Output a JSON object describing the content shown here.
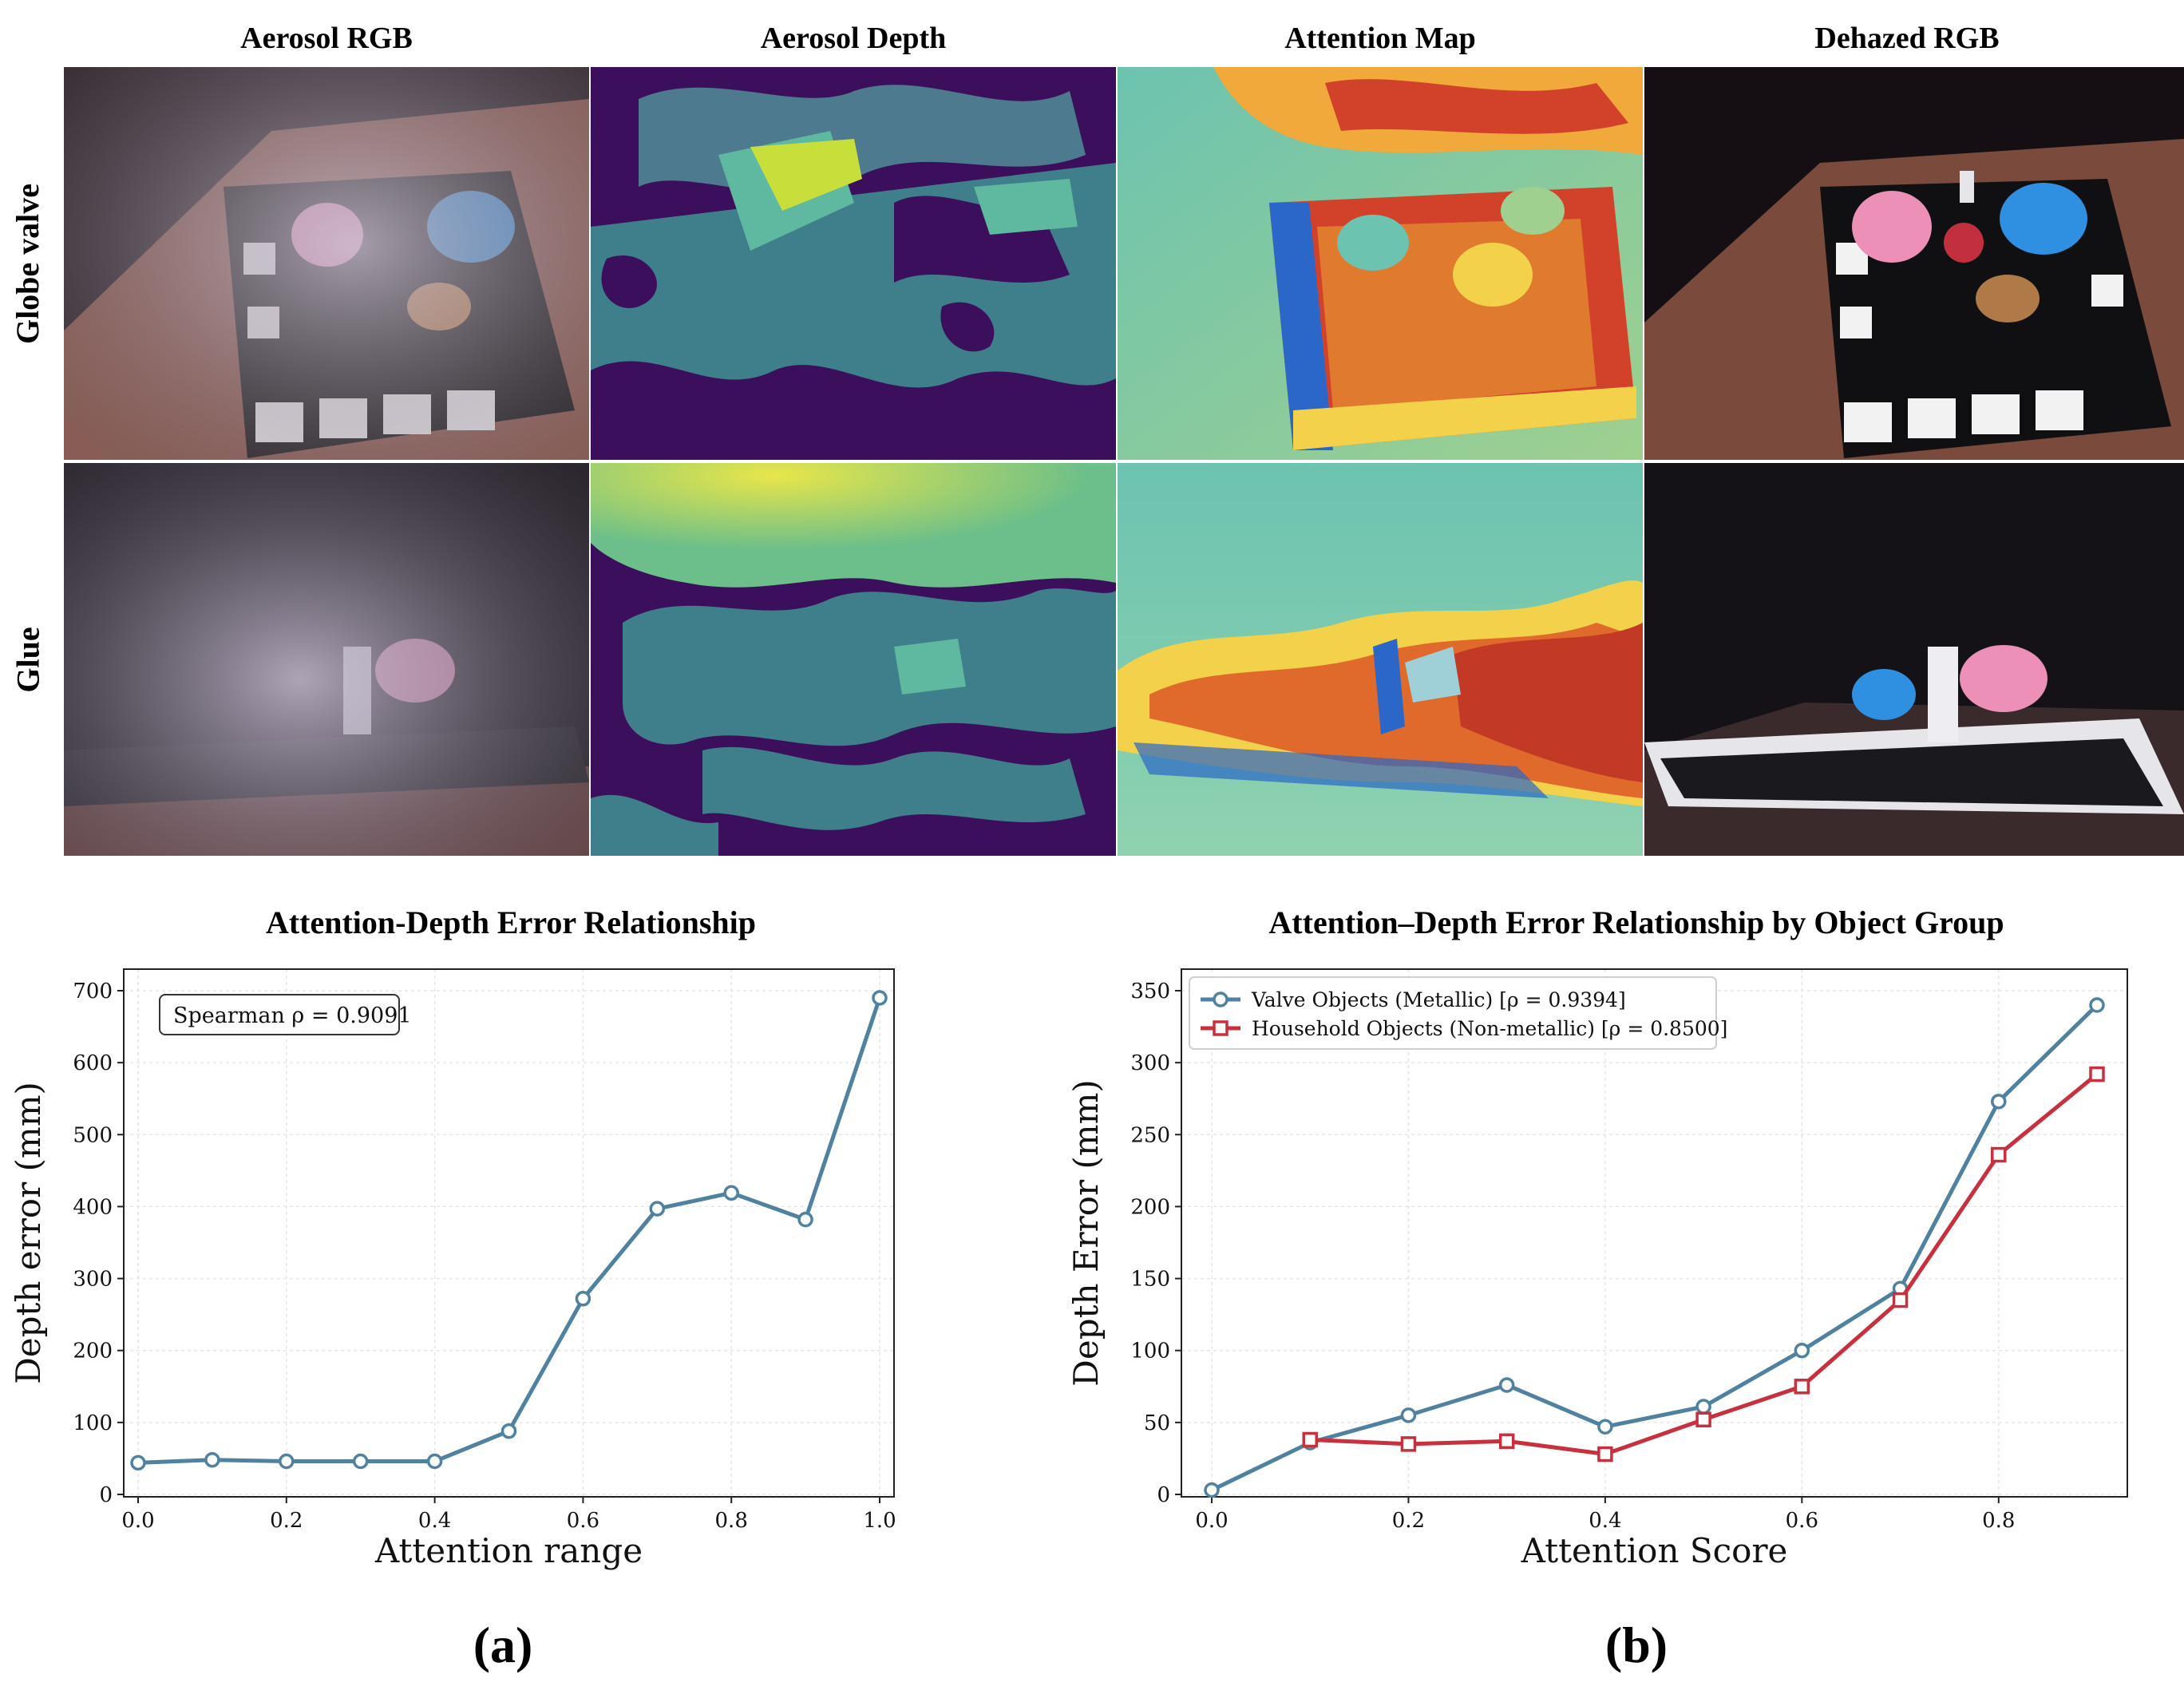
{
  "grid": {
    "columns": [
      "Aerosol RGB",
      "Aerosol Depth",
      "Attention Map",
      "Dehazed RGB"
    ],
    "rows": [
      "Globe valve",
      "Glue"
    ]
  },
  "palette": {
    "line_blue": "#4f81a0",
    "line_red": "#c8303e",
    "depth_dark": "#3b0f5c",
    "depth_teal": "#3f7f8c",
    "depth_green": "#5fb8a0",
    "depth_yellow": "#c8de3a",
    "attn_teal": "#6cc3b0",
    "attn_red": "#d2412a",
    "attn_yellow": "#f3d14a",
    "attn_blue": "#2a67c8"
  },
  "chart_data": [
    {
      "type": "line",
      "panel_label": "(a)",
      "title": "Attention-Depth Error Relationship",
      "xlabel": "Attention range",
      "ylabel": "Depth error  (mm)",
      "xlim": [
        0,
        1.0
      ],
      "ylim": [
        0,
        700
      ],
      "xticks": [
        "0.0",
        "0.2",
        "0.4",
        "0.6",
        "0.8",
        "1.0"
      ],
      "yticks": [
        "0",
        "100",
        "200",
        "300",
        "400",
        "500",
        "600",
        "700"
      ],
      "grid": true,
      "annotation": "Spearman ρ = 0.9091",
      "series": [
        {
          "color": "#4f81a0",
          "marker": "circle",
          "x": [
            0.0,
            0.1,
            0.2,
            0.3,
            0.4,
            0.5,
            0.6,
            0.7,
            0.8,
            0.9,
            1.0
          ],
          "y": [
            44,
            48,
            46,
            46,
            46,
            88,
            272,
            397,
            419,
            382,
            690
          ]
        }
      ]
    },
    {
      "type": "line",
      "panel_label": "(b)",
      "title": "Attention–Depth Error Relationship by Object Group",
      "xlabel": "Attention Score",
      "ylabel": "Depth Error  (mm)",
      "xlim": [
        0,
        0.9
      ],
      "ylim": [
        0,
        350
      ],
      "xticks": [
        "0.0",
        "0.2",
        "0.4",
        "0.6",
        "0.8"
      ],
      "yticks": [
        "0",
        "50",
        "100",
        "150",
        "200",
        "250",
        "300",
        "350"
      ],
      "grid": true,
      "legend_position": "top-left",
      "series": [
        {
          "name": "Valve Objects (Metallic) [ρ = 0.9394]",
          "color": "#4f81a0",
          "marker": "circle",
          "x": [
            0.0,
            0.1,
            0.2,
            0.3,
            0.4,
            0.5,
            0.6,
            0.7,
            0.8,
            0.9
          ],
          "y": [
            3,
            36,
            55,
            76,
            47,
            61,
            100,
            143,
            273,
            340
          ]
        },
        {
          "name": "Household Objects (Non-metallic) [ρ = 0.8500]",
          "color": "#c8303e",
          "marker": "square",
          "x": [
            0.1,
            0.2,
            0.3,
            0.4,
            0.5,
            0.6,
            0.7,
            0.8,
            0.9
          ],
          "y": [
            38,
            35,
            37,
            28,
            52,
            75,
            135,
            236,
            292
          ]
        }
      ]
    }
  ]
}
